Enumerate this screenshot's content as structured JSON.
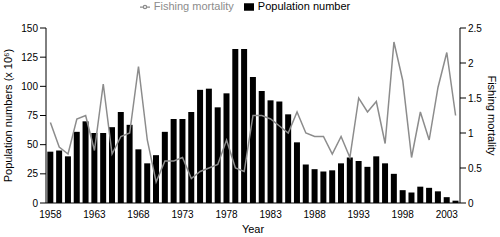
{
  "chart_data": {
    "type": "bar",
    "x_label": "Year",
    "y_label": "Population numbers (x 10⁶)",
    "y2_label": "Fishing mortality",
    "categories": [
      "1958",
      null,
      null,
      null,
      null,
      "1963",
      null,
      null,
      null,
      null,
      "1968",
      null,
      null,
      null,
      null,
      "1973",
      null,
      null,
      null,
      null,
      "1978",
      null,
      null,
      null,
      null,
      "1983",
      null,
      null,
      null,
      null,
      "1988",
      null,
      null,
      null,
      null,
      "1993",
      null,
      null,
      null,
      null,
      "1998",
      null,
      null,
      null,
      null,
      "2003",
      null
    ],
    "series": [
      {
        "name": "Population number",
        "type": "bar",
        "color": "#000000",
        "values": [
          44,
          45,
          40,
          61,
          70,
          60,
          60,
          65,
          78,
          67,
          46,
          34,
          41,
          61,
          72,
          72,
          78,
          97,
          98,
          82,
          94,
          132,
          132,
          108,
          96,
          88,
          87,
          76,
          52,
          33,
          29,
          27,
          28,
          34,
          39,
          36,
          31,
          40,
          34,
          25,
          11,
          9,
          14,
          13,
          10,
          5,
          2
        ]
      },
      {
        "name": "Fishing mortality",
        "type": "line",
        "axis": "y2",
        "color": "#8c8c8c",
        "values": [
          1.15,
          0.8,
          0.7,
          1.2,
          1.25,
          0.75,
          1.7,
          0.7,
          0.95,
          1.0,
          1.95,
          0.9,
          0.3,
          0.6,
          0.6,
          0.65,
          0.35,
          0.45,
          0.5,
          0.55,
          0.9,
          0.5,
          0.45,
          1.25,
          1.25,
          1.2,
          1.1,
          1.0,
          1.3,
          1.0,
          0.95,
          0.95,
          0.7,
          0.95,
          0.65,
          1.5,
          1.3,
          1.45,
          0.85,
          2.3,
          1.75,
          0.65,
          1.3,
          0.9,
          1.65,
          2.15,
          1.25
        ]
      }
    ],
    "ylim": [
      0,
      150
    ],
    "yticks": [
      0,
      25,
      50,
      75,
      100,
      125,
      150
    ],
    "y2lim": [
      0,
      2.5
    ],
    "y2ticks": [
      0,
      0.5,
      1,
      1.5,
      2,
      2.5
    ],
    "legend": "top"
  }
}
